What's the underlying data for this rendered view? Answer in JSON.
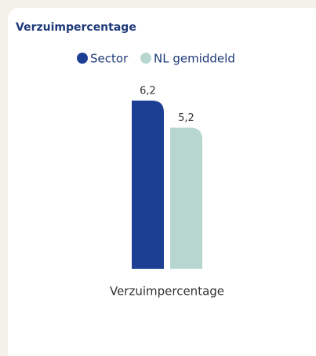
{
  "chart_data": {
    "type": "bar",
    "title": "Verzuimpercentage",
    "categories": [
      "Verzuimpercentage"
    ],
    "series": [
      {
        "name": "Sector",
        "color": "#1c3f94",
        "values": [
          6.2
        ],
        "value_labels": [
          "6,2"
        ]
      },
      {
        "name": "NL gemiddeld",
        "color": "#b8d6d0",
        "values": [
          5.2
        ],
        "value_labels": [
          "5,2"
        ]
      }
    ],
    "ylim": [
      0,
      6.2
    ]
  }
}
